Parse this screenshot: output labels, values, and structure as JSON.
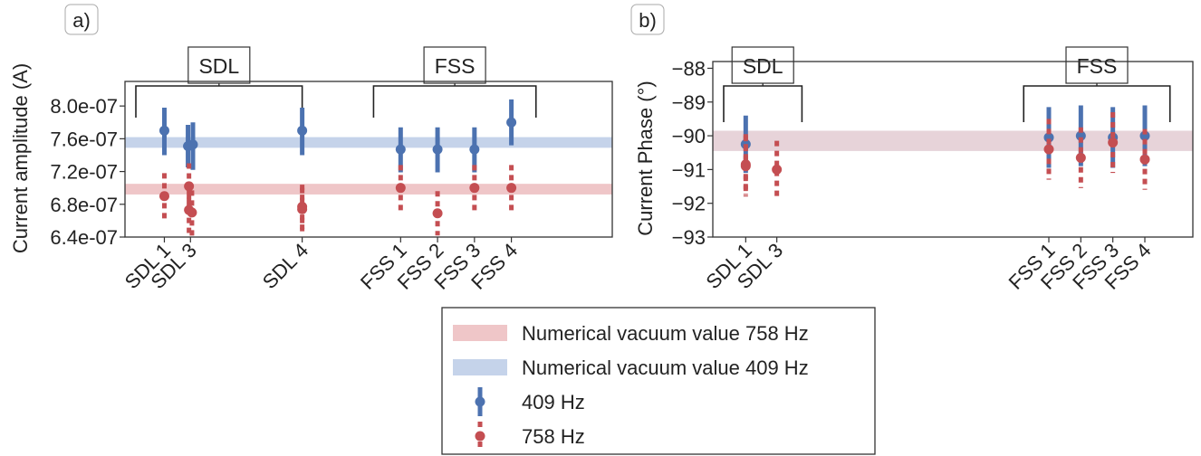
{
  "chart_data": [
    {
      "panel_label": "a)",
      "type": "scatter",
      "ylabel": "Current amplitude (A)",
      "ylim": [
        6.4e-07,
        8.3e-07
      ],
      "yticks": [
        6.4e-07,
        6.8e-07,
        7.2e-07,
        7.6e-07,
        8e-07
      ],
      "ytick_labels": [
        "6.4e-07",
        "6.8e-07",
        "7.2e-07",
        "7.6e-07",
        "8.0e-07"
      ],
      "x_categories": [
        "SDL 1",
        "SDL 3",
        "SDL 4",
        "FSS 1",
        "FSS 2",
        "FSS 3",
        "FSS 4"
      ],
      "x_positions": [
        0.8,
        1.33,
        3.6,
        5.6,
        6.35,
        7.1,
        7.85
      ],
      "xlim": [
        0,
        9.9
      ],
      "bands": [
        {
          "name": "Numerical vacuum value 409 Hz",
          "color": "#c5d3ea",
          "y0": 7.49e-07,
          "y1": 7.62e-07
        },
        {
          "name": "Numerical vacuum value 758 Hz",
          "color": "#efc6c8",
          "y0": 6.92e-07,
          "y1": 7.05e-07
        }
      ],
      "series": [
        {
          "name": "409 Hz",
          "color": "#4c72b0",
          "style": "solid",
          "points": [
            {
              "x": 0.8,
              "y": 7.7e-07,
              "lo": 7.4e-07,
              "hi": 7.98e-07
            },
            {
              "x": 1.28,
              "y": 7.51e-07,
              "lo": 7.25e-07,
              "hi": 7.77e-07
            },
            {
              "x": 1.38,
              "y": 7.53e-07,
              "lo": 7.22e-07,
              "hi": 7.8e-07
            },
            {
              "x": 3.6,
              "y": 7.7e-07,
              "lo": 7.4e-07,
              "hi": 7.98e-07
            },
            {
              "x": 5.6,
              "y": 7.47e-07,
              "lo": 7.19e-07,
              "hi": 7.74e-07
            },
            {
              "x": 6.35,
              "y": 7.47e-07,
              "lo": 7.19e-07,
              "hi": 7.74e-07
            },
            {
              "x": 7.1,
              "y": 7.47e-07,
              "lo": 7.19e-07,
              "hi": 7.74e-07
            },
            {
              "x": 7.85,
              "y": 7.8e-07,
              "lo": 7.52e-07,
              "hi": 8.08e-07
            }
          ]
        },
        {
          "name": "758 Hz",
          "color": "#c44e52",
          "style": "dotted",
          "points": [
            {
              "x": 0.8,
              "y": 6.9e-07,
              "lo": 6.62e-07,
              "hi": 7.18e-07
            },
            {
              "x": 1.3,
              "y": 7.02e-07,
              "lo": 6.72e-07,
              "hi": 7.3e-07
            },
            {
              "x": 1.3,
              "y": 6.73e-07,
              "lo": 6.45e-07,
              "hi": 7e-07
            },
            {
              "x": 1.36,
              "y": 6.7e-07,
              "lo": 6.4e-07,
              "hi": 6.97e-07
            },
            {
              "x": 3.6,
              "y": 6.77e-07,
              "lo": 6.5e-07,
              "hi": 7.04e-07
            },
            {
              "x": 3.6,
              "y": 6.74e-07,
              "lo": 6.47e-07,
              "hi": 7e-07
            },
            {
              "x": 5.6,
              "y": 7e-07,
              "lo": 6.72e-07,
              "hi": 7.28e-07
            },
            {
              "x": 6.35,
              "y": 6.69e-07,
              "lo": 6.42e-07,
              "hi": 6.96e-07
            },
            {
              "x": 7.1,
              "y": 7e-07,
              "lo": 6.72e-07,
              "hi": 7.28e-07
            },
            {
              "x": 7.85,
              "y": 7e-07,
              "lo": 6.72e-07,
              "hi": 7.28e-07
            }
          ]
        }
      ],
      "groups": [
        {
          "label": "SDL",
          "x0": 0.0,
          "x1": 3.6
        },
        {
          "label": "FSS",
          "x0": 5.05,
          "x1": 8.35
        }
      ],
      "grid": false
    },
    {
      "panel_label": "b)",
      "type": "scatter",
      "ylabel": "Current Phase (°)",
      "ylim": [
        -93,
        -87.8
      ],
      "yticks": [
        -93,
        -92,
        -91,
        -90,
        -89,
        -88
      ],
      "ytick_labels": [
        "−93",
        "−92",
        "−91",
        "−90",
        "−89",
        "−88"
      ],
      "x_categories": [
        "SDL 1",
        "SDL 3",
        "FSS 1",
        "FSS 2",
        "FSS 3",
        "FSS 4"
      ],
      "x_positions": [
        0.72,
        1.4,
        7.35,
        8.05,
        8.75,
        9.45
      ],
      "xlim": [
        0,
        10.5
      ],
      "bands": [
        {
          "name": "Numerical vacuum value 409 Hz",
          "color": "#c5d3ea",
          "y0": -90.45,
          "y1": -89.85
        },
        {
          "name": "Numerical vacuum value 758 Hz",
          "color": "#efc6c8",
          "y0": -90.45,
          "y1": -89.85
        }
      ],
      "overlap_color": "#c9a7b6",
      "series": [
        {
          "name": "409 Hz",
          "color": "#4c72b0",
          "style": "solid",
          "points": [
            {
              "x": 0.72,
              "y": -90.25,
              "lo": -91.1,
              "hi": -89.4
            },
            {
              "x": 7.35,
              "y": -90.05,
              "lo": -90.95,
              "hi": -89.15
            },
            {
              "x": 8.05,
              "y": -90.0,
              "lo": -90.9,
              "hi": -89.1
            },
            {
              "x": 8.75,
              "y": -90.05,
              "lo": -90.95,
              "hi": -89.15
            },
            {
              "x": 9.45,
              "y": -90.0,
              "lo": -90.9,
              "hi": -89.1
            }
          ]
        },
        {
          "name": "758 Hz",
          "color": "#c44e52",
          "style": "dotted",
          "points": [
            {
              "x": 0.72,
              "y": -90.85,
              "lo": -91.75,
              "hi": -89.95
            },
            {
              "x": 0.72,
              "y": -90.9,
              "lo": -91.8,
              "hi": -90.0
            },
            {
              "x": 1.4,
              "y": -91.0,
              "lo": -91.9,
              "hi": -90.15
            },
            {
              "x": 7.35,
              "y": -90.4,
              "lo": -91.3,
              "hi": -89.5
            },
            {
              "x": 8.05,
              "y": -90.65,
              "lo": -91.55,
              "hi": -89.75
            },
            {
              "x": 8.75,
              "y": -90.2,
              "lo": -91.1,
              "hi": -89.3
            },
            {
              "x": 9.45,
              "y": -90.7,
              "lo": -91.6,
              "hi": -89.8
            }
          ]
        }
      ],
      "groups": [
        {
          "label": "SDL",
          "x0": 0.0,
          "x1": 1.95
        },
        {
          "label": "FSS",
          "x0": 6.8,
          "x1": 10.0
        }
      ],
      "grid": false
    }
  ],
  "legend": {
    "placement": "bottom-center",
    "entries": [
      {
        "label": "Numerical vacuum value 758 Hz",
        "kind": "band",
        "color": "#efc6c8"
      },
      {
        "label": "Numerical vacuum value 409 Hz",
        "kind": "band",
        "color": "#c5d3ea"
      },
      {
        "label": "409 Hz",
        "kind": "solid",
        "color": "#4c72b0"
      },
      {
        "label": "758 Hz",
        "kind": "dotted",
        "color": "#c44e52"
      }
    ]
  }
}
